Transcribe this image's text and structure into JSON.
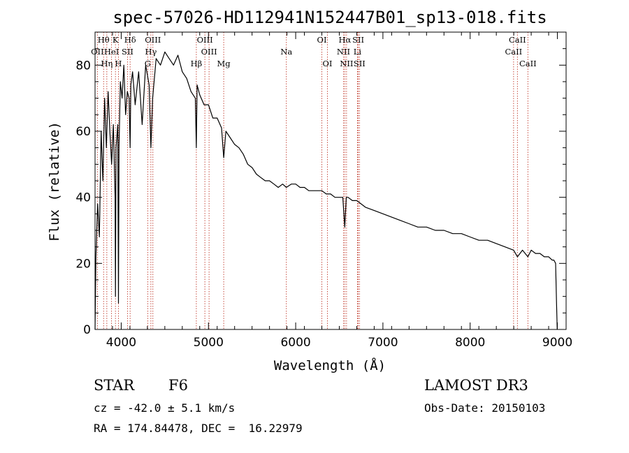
{
  "chart_data": {
    "type": "line",
    "title": "spec-57026-HD112941N152447B01_sp13-018.fits",
    "xlabel": "Wavelength (Å)",
    "ylabel": "Flux (relative)",
    "xlim": [
      3700,
      9100
    ],
    "ylim": [
      0,
      90
    ],
    "xticks": [
      4000,
      5000,
      6000,
      7000,
      8000,
      9000
    ],
    "yticks": [
      0,
      20,
      40,
      60,
      80
    ],
    "grid": false,
    "series": [
      {
        "name": "spectrum",
        "x": [
          3700,
          3710,
          3730,
          3750,
          3770,
          3790,
          3810,
          3830,
          3850,
          3870,
          3890,
          3910,
          3930,
          3934,
          3940,
          3960,
          3968,
          3975,
          3990,
          4010,
          4030,
          4050,
          4070,
          4090,
          4102,
          4110,
          4130,
          4160,
          4200,
          4240,
          4280,
          4320,
          4340,
          4360,
          4400,
          4450,
          4500,
          4550,
          4600,
          4650,
          4700,
          4750,
          4800,
          4850,
          4861,
          4870,
          4900,
          4950,
          5000,
          5050,
          5100,
          5150,
          5175,
          5200,
          5250,
          5300,
          5350,
          5400,
          5450,
          5500,
          5550,
          5600,
          5650,
          5700,
          5750,
          5800,
          5850,
          5893,
          5950,
          6000,
          6050,
          6100,
          6150,
          6200,
          6250,
          6300,
          6350,
          6400,
          6450,
          6500,
          6540,
          6563,
          6580,
          6600,
          6650,
          6700,
          6750,
          6800,
          6900,
          7000,
          7100,
          7200,
          7300,
          7400,
          7500,
          7600,
          7700,
          7800,
          7900,
          8000,
          8100,
          8200,
          8300,
          8400,
          8498,
          8542,
          8600,
          8662,
          8700,
          8750,
          8800,
          8850,
          8900,
          8940,
          8960,
          8980,
          8990,
          8998
        ],
        "y": [
          0,
          22,
          38,
          28,
          60,
          45,
          70,
          55,
          72,
          60,
          50,
          62,
          40,
          10,
          55,
          62,
          8,
          55,
          75,
          70,
          80,
          65,
          72,
          70,
          55,
          74,
          78,
          68,
          78,
          62,
          80,
          74,
          55,
          70,
          82,
          80,
          84,
          82,
          80,
          83,
          78,
          76,
          72,
          70,
          55,
          74,
          71,
          68,
          68,
          64,
          64,
          61,
          52,
          60,
          58,
          56,
          55,
          53,
          50,
          49,
          47,
          46,
          45,
          45,
          44,
          43,
          44,
          43,
          44,
          44,
          43,
          43,
          42,
          42,
          42,
          42,
          41,
          41,
          40,
          40,
          40,
          31,
          40,
          40,
          39,
          39,
          38,
          37,
          36,
          35,
          34,
          33,
          32,
          31,
          31,
          30,
          30,
          29,
          29,
          28,
          27,
          27,
          26,
          25,
          24,
          22,
          24,
          22,
          24,
          23,
          23,
          22,
          22,
          21,
          21,
          20,
          8,
          0
        ]
      }
    ],
    "spectral_lines": [
      {
        "label": "Hθ",
        "wavelength": 3798,
        "row": 1
      },
      {
        "label": "OII",
        "wavelength": 3727,
        "row": 2
      },
      {
        "label": "HeI",
        "wavelength": 3889,
        "row": 2
      },
      {
        "label": "Hη",
        "wavelength": 3835,
        "row": 3
      },
      {
        "label": "K",
        "wavelength": 3934,
        "row": 1
      },
      {
        "label": "H",
        "wavelength": 3968,
        "row": 3
      },
      {
        "label": "SII",
        "wavelength": 4072,
        "row": 2
      },
      {
        "label": "Hδ",
        "wavelength": 4102,
        "row": 1
      },
      {
        "label": "OIII",
        "wavelength": 4363,
        "row": 1
      },
      {
        "label": "Hγ",
        "wavelength": 4340,
        "row": 2
      },
      {
        "label": "G",
        "wavelength": 4304,
        "row": 3
      },
      {
        "label": "Hβ",
        "wavelength": 4861,
        "row": 3
      },
      {
        "label": "OIII",
        "wavelength": 4959,
        "row": 1
      },
      {
        "label": "OIII",
        "wavelength": 5007,
        "row": 2
      },
      {
        "label": "Mg",
        "wavelength": 5175,
        "row": 3
      },
      {
        "label": "Na",
        "wavelength": 5893,
        "row": 2
      },
      {
        "label": "OI",
        "wavelength": 6300,
        "row": 1
      },
      {
        "label": "OI",
        "wavelength": 6364,
        "row": 3
      },
      {
        "label": "Hα",
        "wavelength": 6563,
        "row": 1
      },
      {
        "label": "NII",
        "wavelength": 6548,
        "row": 2
      },
      {
        "label": "NII",
        "wavelength": 6583,
        "row": 3
      },
      {
        "label": "SII",
        "wavelength": 6717,
        "row": 1
      },
      {
        "label": "Li",
        "wavelength": 6708,
        "row": 2
      },
      {
        "label": "SII",
        "wavelength": 6731,
        "row": 3
      },
      {
        "label": "CaII",
        "wavelength": 8542,
        "row": 1
      },
      {
        "label": "CaII",
        "wavelength": 8498,
        "row": 2
      },
      {
        "label": "CaII",
        "wavelength": 8662,
        "row": 3
      }
    ]
  },
  "info": {
    "object_class": "STAR",
    "subclass": "F6",
    "survey": "LAMOST DR3",
    "cz": "cz = -42.0 ± 5.1 km/s",
    "obs_date": "Obs-Date: 20150103",
    "coords": "RA = 174.84478, DEC =  16.22979"
  },
  "colors": {
    "spectrum": "#000000",
    "line_marker": "#c0392b"
  }
}
